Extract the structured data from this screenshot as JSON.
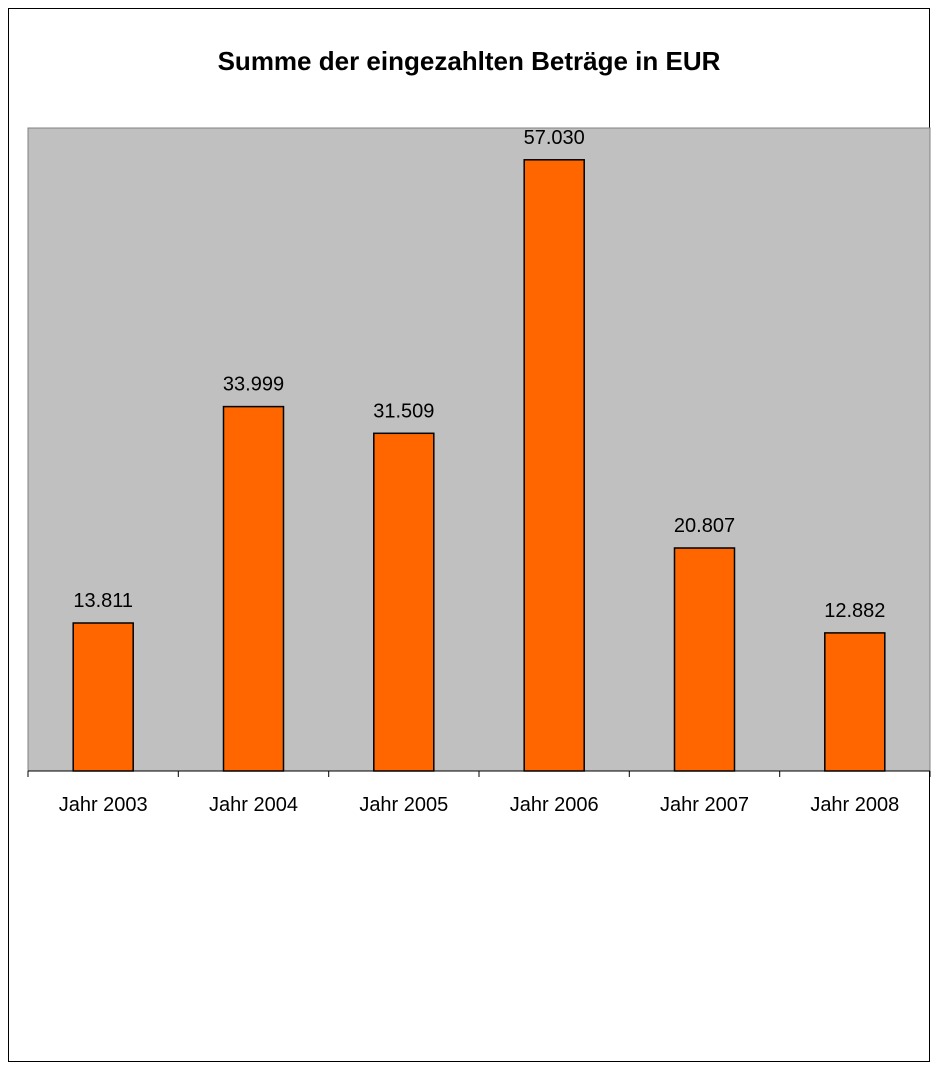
{
  "chart_data": {
    "type": "bar",
    "title": "Summe der eingezahlten Beträge in EUR",
    "xlabel": "",
    "ylabel": "",
    "categories": [
      "Jahr 2003",
      "Jahr 2004",
      "Jahr 2005",
      "Jahr 2006",
      "Jahr 2007",
      "Jahr 2008"
    ],
    "values": [
      13811,
      33999,
      31509,
      57030,
      20807,
      12882
    ],
    "data_labels": [
      "13.811",
      "33.999",
      "31.509",
      "57.030",
      "20.807",
      "12.882"
    ],
    "ylim": [
      0,
      60000
    ],
    "grid": false,
    "legend": "none",
    "colors": {
      "bar": "#FF6600",
      "plot_background": "#C0C0C0",
      "bar_border": "#000000"
    }
  }
}
